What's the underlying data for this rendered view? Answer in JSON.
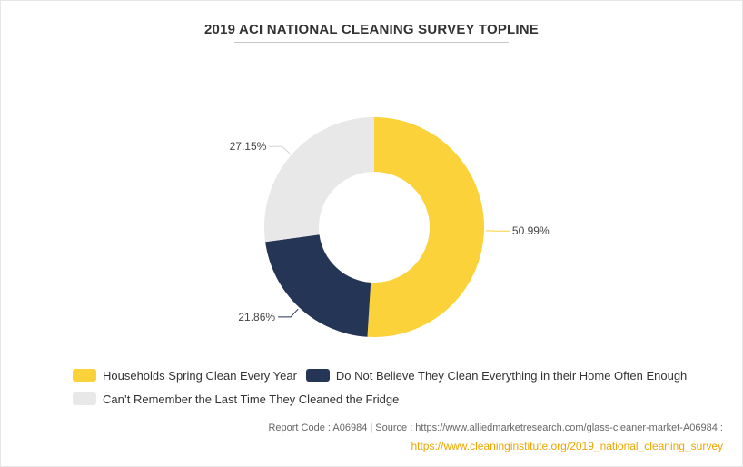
{
  "chart_data": {
    "type": "pie",
    "title": "2019 ACI NATIONAL CLEANING SURVEY TOPLINE",
    "categories": [
      "Households Spring Clean Every Year",
      "Do Not Believe They Clean Everything in their Home Often Enough",
      "Can’t Remember the Last Time They Cleaned the Fridge"
    ],
    "values": [
      50.99,
      21.86,
      27.15
    ],
    "labels": [
      "50.99%",
      "21.86%",
      "27.15%"
    ],
    "colors": [
      "#fcd23a",
      "#243556",
      "#e8e8e8"
    ],
    "legend_position": "bottom-left",
    "donut": true
  },
  "footer": {
    "source_line": "Report Code : A06984  |  Source : https://www.alliedmarketresearch.com/glass-cleaner-market-A06984 :",
    "link": "https://www.cleaninginstitute.org/2019_national_cleaning_survey"
  }
}
